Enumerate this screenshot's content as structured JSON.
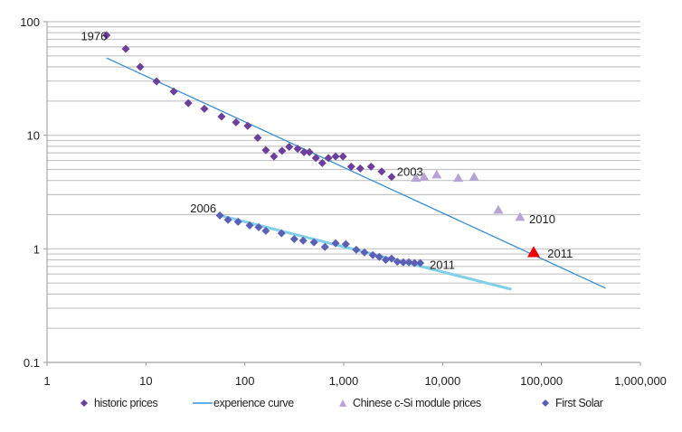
{
  "chart_data": {
    "type": "scatter",
    "title": "",
    "xlabel": "",
    "ylabel": "",
    "xscale": "log",
    "yscale": "log",
    "xlim": [
      1,
      1000000
    ],
    "ylim": [
      0.1,
      100
    ],
    "grid": "horizontal-minor",
    "legend_position": "bottom",
    "x_tick_labels": [
      "1",
      "10",
      "100",
      "1,000",
      "10,000",
      "100,000",
      "1,000,000"
    ],
    "x_ticks": [
      1,
      10,
      100,
      1000,
      10000,
      100000,
      1000000
    ],
    "y_tick_labels": [
      "0.1",
      "1",
      "10",
      "100"
    ],
    "y_ticks": [
      0.1,
      1,
      10,
      100
    ],
    "series": [
      {
        "name": "historic prices",
        "kind": "scatter",
        "marker": "diamond",
        "color": "#6b3f9b",
        "points": [
          [
            4.0,
            75.9
          ],
          [
            6.25,
            57.7
          ],
          [
            8.75,
            40.0
          ],
          [
            12.8,
            29.8
          ],
          [
            19.1,
            24.3
          ],
          [
            26.8,
            19.2
          ],
          [
            39.0,
            17.1
          ],
          [
            58.2,
            14.6
          ],
          [
            81.5,
            13.0
          ],
          [
            107,
            12.1
          ],
          [
            135,
            9.5
          ],
          [
            163,
            7.4
          ],
          [
            197,
            6.5
          ],
          [
            238,
            7.3
          ],
          [
            281,
            7.9
          ],
          [
            342,
            7.6
          ],
          [
            397,
            7.1
          ],
          [
            450,
            7.1
          ],
          [
            523,
            6.3
          ],
          [
            607,
            5.7
          ],
          [
            701,
            6.3
          ],
          [
            828,
            6.5
          ],
          [
            982,
            6.5
          ],
          [
            1190,
            5.3
          ],
          [
            1470,
            5.1
          ],
          [
            1890,
            5.3
          ],
          [
            2420,
            4.8
          ],
          [
            3050,
            4.3
          ]
        ]
      },
      {
        "name": "experience curve",
        "kind": "line",
        "color": "#3b8fd0",
        "points": [
          [
            4.0,
            47.9
          ],
          [
            446000,
            0.45
          ]
        ]
      },
      {
        "name": "Chinese c-Si module prices",
        "kind": "scatter",
        "marker": "triangle",
        "color": "#b7a3d4",
        "points": [
          [
            5370,
            4.2
          ],
          [
            6490,
            4.3
          ],
          [
            8710,
            4.5
          ],
          [
            14400,
            4.2
          ],
          [
            20800,
            4.3
          ],
          [
            36600,
            2.2
          ],
          [
            60700,
            1.9
          ]
        ]
      },
      {
        "name": "Chinese c-Si module prices 2011",
        "kind": "scatter",
        "marker": "triangle",
        "color": "#ee0000",
        "in_legend": false,
        "points": [
          [
            83300,
            0.93
          ]
        ]
      },
      {
        "name": "First Solar",
        "kind": "scatter",
        "marker": "diamond",
        "color": "#5b5fb5",
        "points": [
          [
            55.9,
            1.97
          ],
          [
            67.6,
            1.8
          ],
          [
            85.4,
            1.73
          ],
          [
            112,
            1.61
          ],
          [
            138,
            1.55
          ],
          [
            163,
            1.44
          ],
          [
            235,
            1.37
          ],
          [
            316,
            1.22
          ],
          [
            389,
            1.18
          ],
          [
            501,
            1.14
          ],
          [
            646,
            1.04
          ],
          [
            828,
            1.12
          ],
          [
            1050,
            1.1
          ],
          [
            1340,
            0.98
          ],
          [
            1620,
            0.93
          ],
          [
            1970,
            0.88
          ],
          [
            2290,
            0.85
          ],
          [
            2660,
            0.8
          ],
          [
            3050,
            0.82
          ],
          [
            3490,
            0.77
          ],
          [
            4000,
            0.76
          ],
          [
            4560,
            0.76
          ],
          [
            5200,
            0.75
          ],
          [
            5940,
            0.75
          ]
        ]
      },
      {
        "name": "First Solar trend",
        "kind": "line",
        "color": "#7fd0ea",
        "in_legend": false,
        "points": [
          [
            55.9,
            1.97
          ],
          [
            49700,
            0.44
          ]
        ]
      }
    ],
    "annotations": [
      {
        "text": "1976",
        "x": 2.2,
        "y": 75
      },
      {
        "text": "2006",
        "x": 28,
        "y": 2.3
      },
      {
        "text": "2003",
        "x": 3450,
        "y": 4.8
      },
      {
        "text": "2010",
        "x": 75000,
        "y": 1.85
      },
      {
        "text": "2011",
        "x": 115000,
        "y": 0.92
      },
      {
        "text": "2011",
        "x": 7400,
        "y": 0.73
      }
    ]
  },
  "legend": {
    "items": [
      {
        "label": "historic prices",
        "marker": "diamond",
        "color": "#6b3f9b"
      },
      {
        "label": "experience curve",
        "marker": "line",
        "color": "#3b8fd0"
      },
      {
        "label": "Chinese c-Si module prices",
        "marker": "triangle",
        "color": "#b7a3d4"
      },
      {
        "label": "First Solar",
        "marker": "diamond",
        "color": "#5b5fb5"
      }
    ]
  }
}
